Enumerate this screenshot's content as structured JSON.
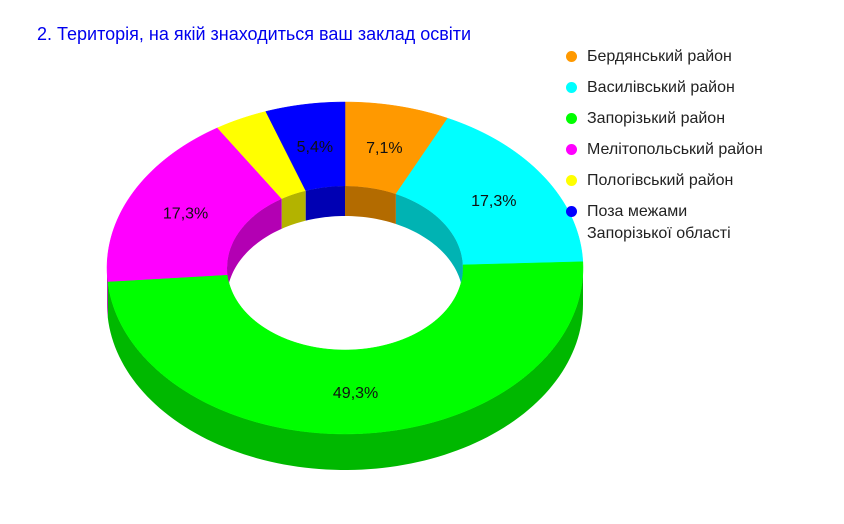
{
  "chart_data": {
    "type": "pie",
    "variant": "donut-3d",
    "title": "2. Територія, на якій знаходиться ваш заклад освіти",
    "legend_position": "right",
    "slices": [
      {
        "name": "Бердянський район",
        "value": 7.1,
        "label": "7,1%",
        "color": "#ff9900"
      },
      {
        "name": "Василівський район",
        "value": 17.3,
        "label": "17,3%",
        "color": "#00ffff"
      },
      {
        "name": "Запорізький район",
        "value": 49.3,
        "label": "49,3%",
        "color": "#00ff00"
      },
      {
        "name": "Мелітопольський район",
        "value": 17.3,
        "label": "17,3%",
        "color": "#ff00ff"
      },
      {
        "name": "Пологівський район",
        "value": 3.6,
        "label": "",
        "color": "#ffff00"
      },
      {
        "name": "Поза межами\nЗапорізької області",
        "value": 5.4,
        "label": "5,4%",
        "color": "#0000ff"
      }
    ]
  }
}
